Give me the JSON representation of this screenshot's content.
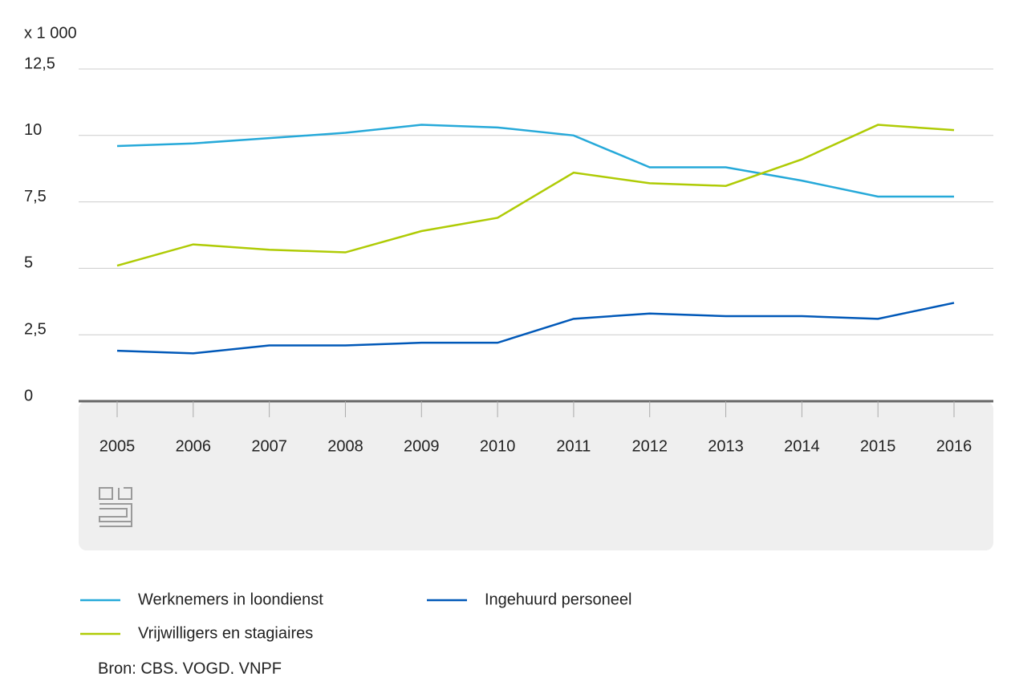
{
  "chart_data": {
    "type": "line",
    "y_unit_label": "x 1 000",
    "categories": [
      "2005",
      "2006",
      "2007",
      "2008",
      "2009",
      "2010",
      "2011",
      "2012",
      "2013",
      "2014",
      "2015",
      "2016"
    ],
    "series": [
      {
        "name": "Werknemers in loondienst",
        "color": "#26a9d9",
        "values": [
          9.6,
          9.7,
          9.9,
          10.1,
          10.4,
          10.3,
          10.0,
          8.8,
          8.8,
          8.3,
          7.7,
          7.7
        ]
      },
      {
        "name": "Vrijwilligers en stagiaires",
        "color": "#afcb05",
        "values": [
          5.1,
          5.9,
          5.7,
          5.6,
          6.4,
          6.9,
          8.6,
          8.2,
          8.1,
          9.1,
          10.4,
          10.2
        ]
      },
      {
        "name": "Ingehuurd personeel",
        "color": "#0058b8",
        "values": [
          1.9,
          1.8,
          2.1,
          2.1,
          2.2,
          2.2,
          3.1,
          3.3,
          3.2,
          3.2,
          3.1,
          3.7
        ]
      }
    ],
    "ylim": [
      0,
      12.5
    ],
    "yticks": [
      0,
      {
        "value": 2.5,
        "label": "2,5"
      },
      5,
      {
        "value": 7.5,
        "label": "7,5"
      },
      10,
      {
        "value": 12.5,
        "label": "12,5"
      }
    ],
    "grid": true,
    "source": "Bron: CBS, VOGD, VNPF"
  }
}
